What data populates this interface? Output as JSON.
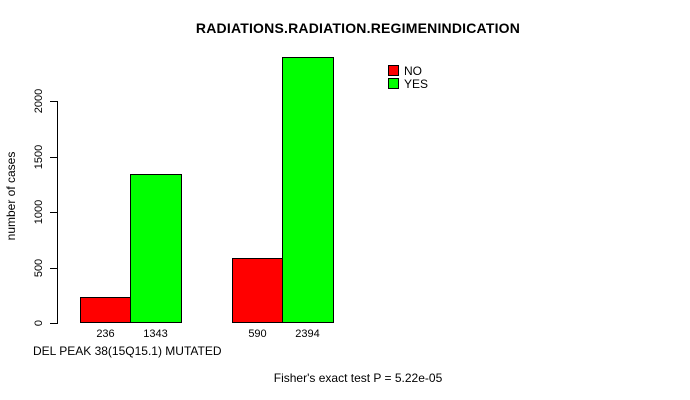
{
  "chart_data": {
    "type": "bar",
    "title": "RADIATIONS.RADIATION.REGIMENINDICATION",
    "ylabel": "number of cases",
    "xlabel": "DEL PEAK 38(15Q15.1) MUTATED",
    "yticks": [
      0,
      500,
      1000,
      1500,
      2000
    ],
    "ylim": [
      0,
      2394
    ],
    "grid": false,
    "legend_position": "top-right",
    "series": [
      {
        "name": "NO",
        "color": "#FF0000",
        "values": [
          236,
          590
        ]
      },
      {
        "name": "YES",
        "color": "#00FF00",
        "values": [
          1343,
          2394
        ]
      }
    ],
    "bar_value_labels": [
      "236",
      "1343",
      "590",
      "2394"
    ],
    "annotation": "Fisher's exact test P = 5.22e-05"
  },
  "colors": {
    "background": "#FFFFFF",
    "text": "#000000",
    "bar_border": "#000000",
    "no_color": "#FF0000",
    "yes_color": "#00FF00"
  }
}
